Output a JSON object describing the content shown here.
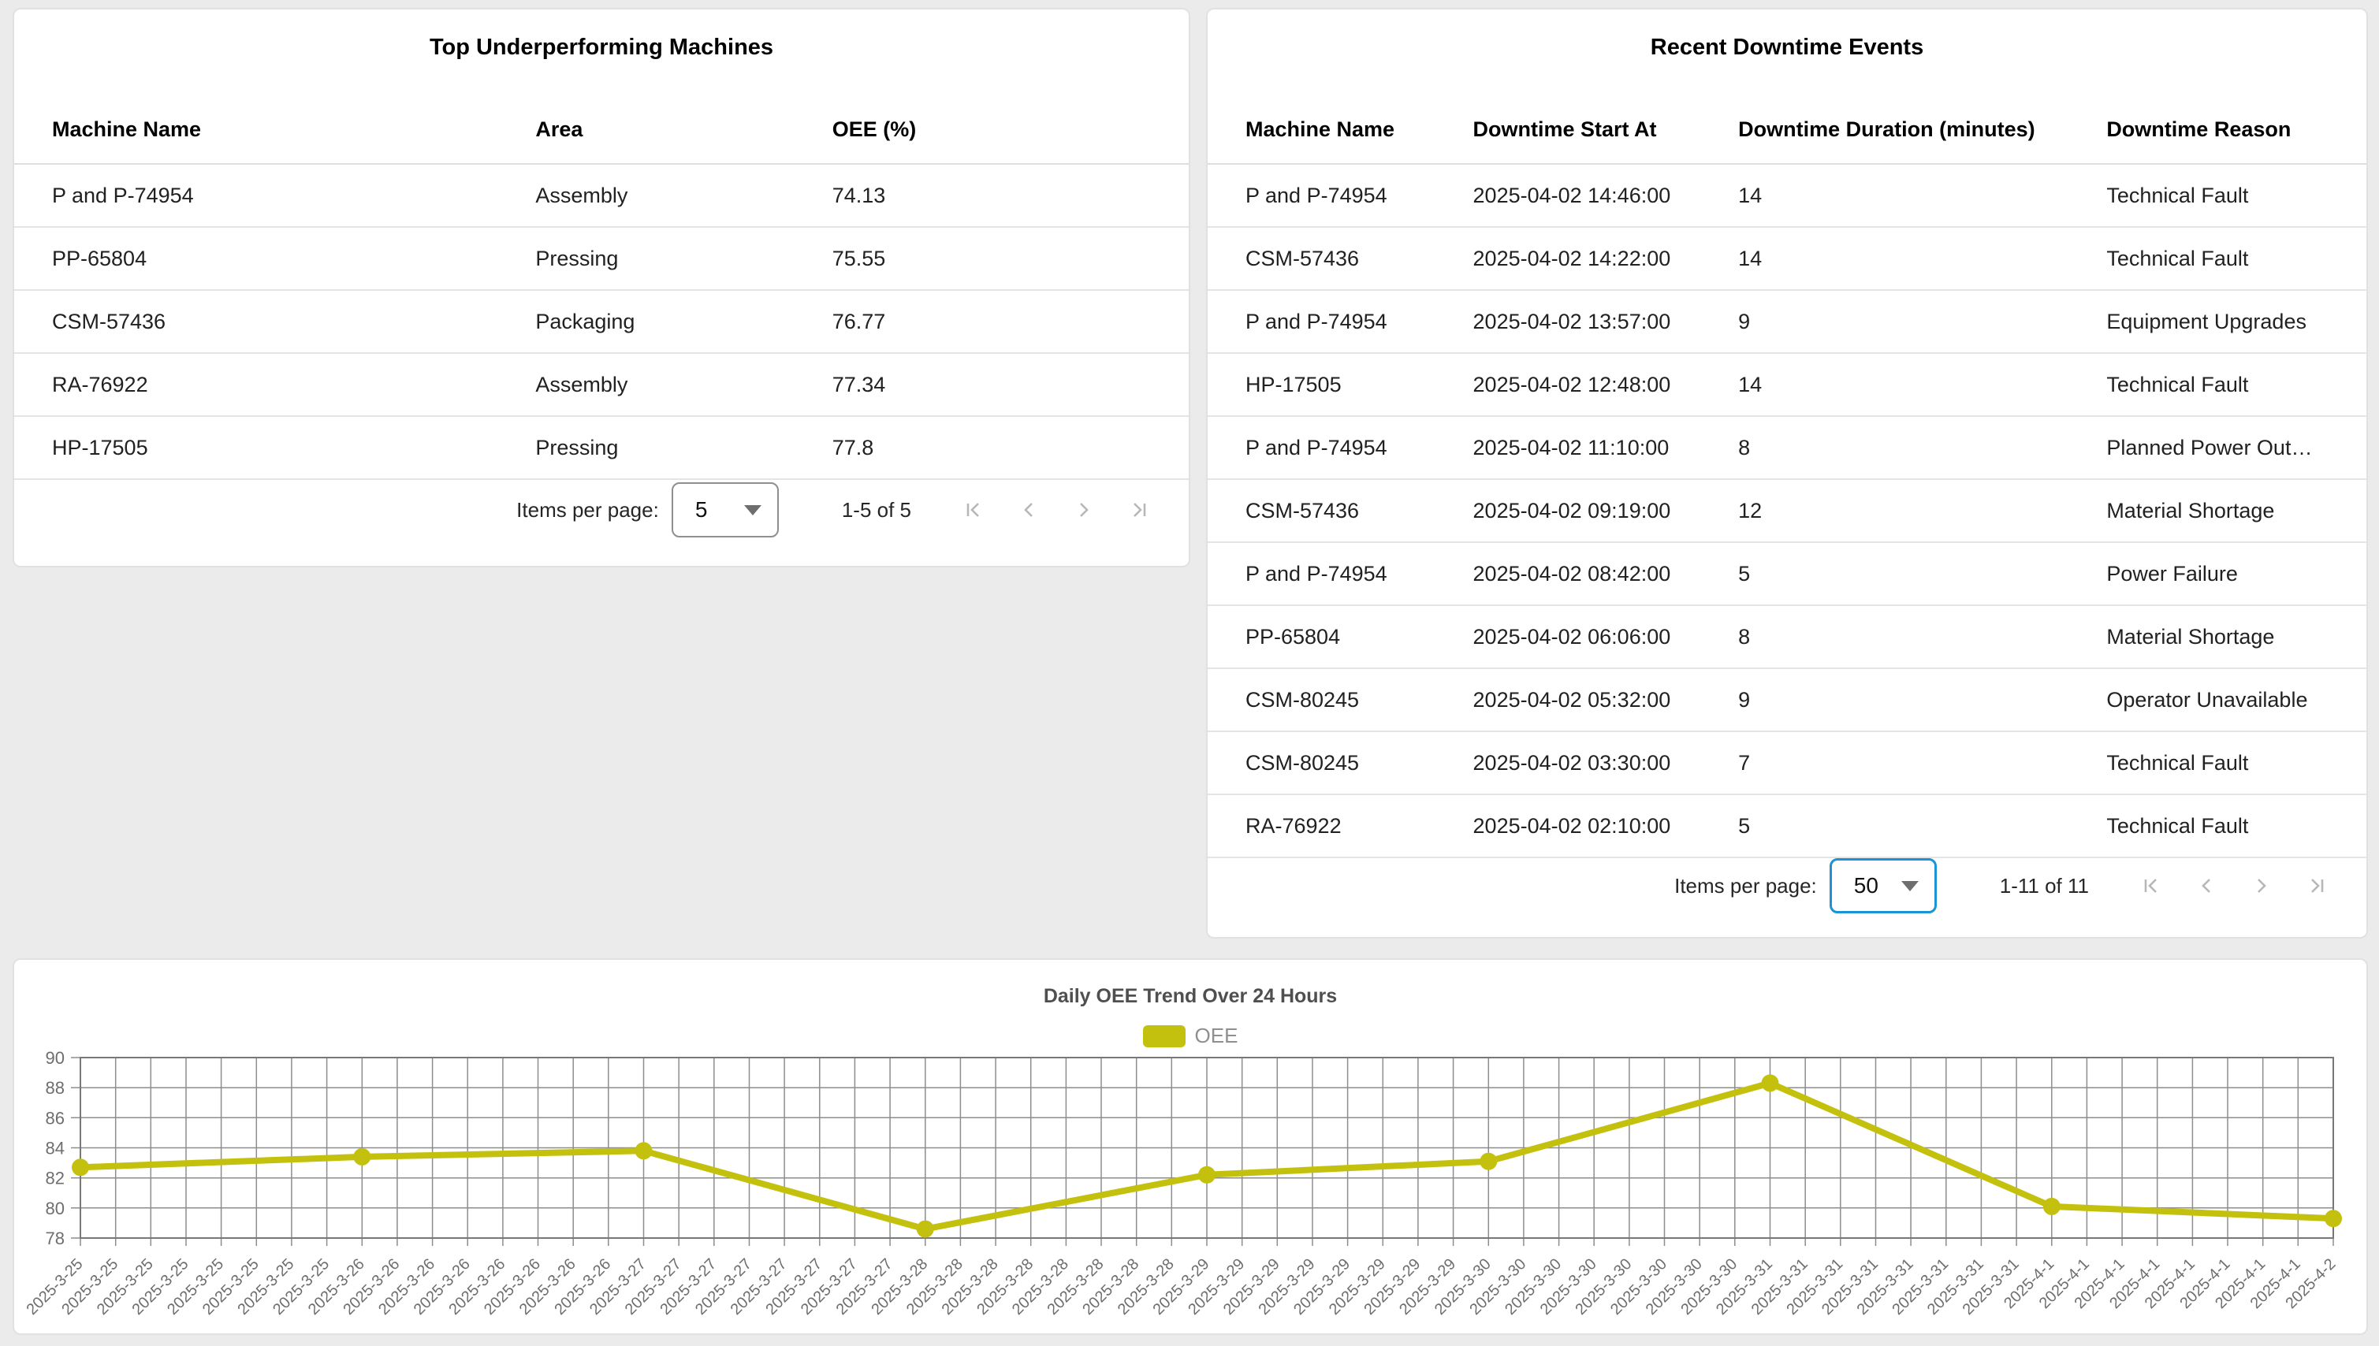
{
  "page": {
    "background": "#ebebeb"
  },
  "cards": {
    "underperforming": {
      "title": "Top Underperforming Machines",
      "columns": [
        "Machine Name",
        "Area",
        "OEE (%)"
      ],
      "rows": [
        [
          "P and P-74954",
          "Assembly",
          "74.13"
        ],
        [
          "PP-65804",
          "Pressing",
          "75.55"
        ],
        [
          "CSM-57436",
          "Packaging",
          "76.77"
        ],
        [
          "RA-76922",
          "Assembly",
          "77.34"
        ],
        [
          "HP-17505",
          "Pressing",
          "77.8"
        ]
      ],
      "paginator": {
        "label": "Items per page:",
        "page_size": "5",
        "range": "1-5 of 5"
      }
    },
    "downtime": {
      "title": "Recent Downtime Events",
      "columns": [
        "Machine Name",
        "Downtime Start At",
        "Downtime Duration (minutes)",
        "Downtime Reason"
      ],
      "rows": [
        [
          "P and P-74954",
          "2025-04-02 14:46:00",
          "14",
          "Technical Fault"
        ],
        [
          "CSM-57436",
          "2025-04-02 14:22:00",
          "14",
          "Technical Fault"
        ],
        [
          "P and P-74954",
          "2025-04-02 13:57:00",
          "9",
          "Equipment Upgrades"
        ],
        [
          "HP-17505",
          "2025-04-02 12:48:00",
          "14",
          "Technical Fault"
        ],
        [
          "P and P-74954",
          "2025-04-02 11:10:00",
          "8",
          "Planned Power Outage"
        ],
        [
          "CSM-57436",
          "2025-04-02 09:19:00",
          "12",
          "Material Shortage"
        ],
        [
          "P and P-74954",
          "2025-04-02 08:42:00",
          "5",
          "Power Failure"
        ],
        [
          "PP-65804",
          "2025-04-02 06:06:00",
          "8",
          "Material Shortage"
        ],
        [
          "CSM-80245",
          "2025-04-02 05:32:00",
          "9",
          "Operator Unavailable"
        ],
        [
          "CSM-80245",
          "2025-04-02 03:30:00",
          "7",
          "Technical Fault"
        ],
        [
          "RA-76922",
          "2025-04-02 02:10:00",
          "5",
          "Technical Fault"
        ]
      ],
      "paginator": {
        "label": "Items per page:",
        "page_size": "50",
        "range": "1-11 of 11",
        "select_accent": "#1a94d4"
      }
    }
  },
  "chart_data": {
    "type": "line",
    "title": "Daily OEE Trend Over 24 Hours",
    "legend": [
      "OEE"
    ],
    "legend_position": "top",
    "x_days": [
      "2025-3-25",
      "2025-3-26",
      "2025-3-27",
      "2025-3-28",
      "2025-3-29",
      "2025-3-30",
      "2025-3-31",
      "2025-4-1",
      "2025-4-2"
    ],
    "ticks_per_day": 8,
    "series": [
      {
        "name": "OEE",
        "values": [
          82.7,
          83.4,
          83.8,
          78.6,
          82.2,
          83.1,
          88.3,
          80.1,
          79.3
        ]
      }
    ],
    "ylim": [
      78,
      90
    ],
    "y_ticks": [
      78,
      80,
      82,
      84,
      86,
      88,
      90
    ],
    "grid": true,
    "line_color": "#c3c10d",
    "axis_text_color": "#6e6e6e",
    "grid_color": "#8d8d8d"
  }
}
